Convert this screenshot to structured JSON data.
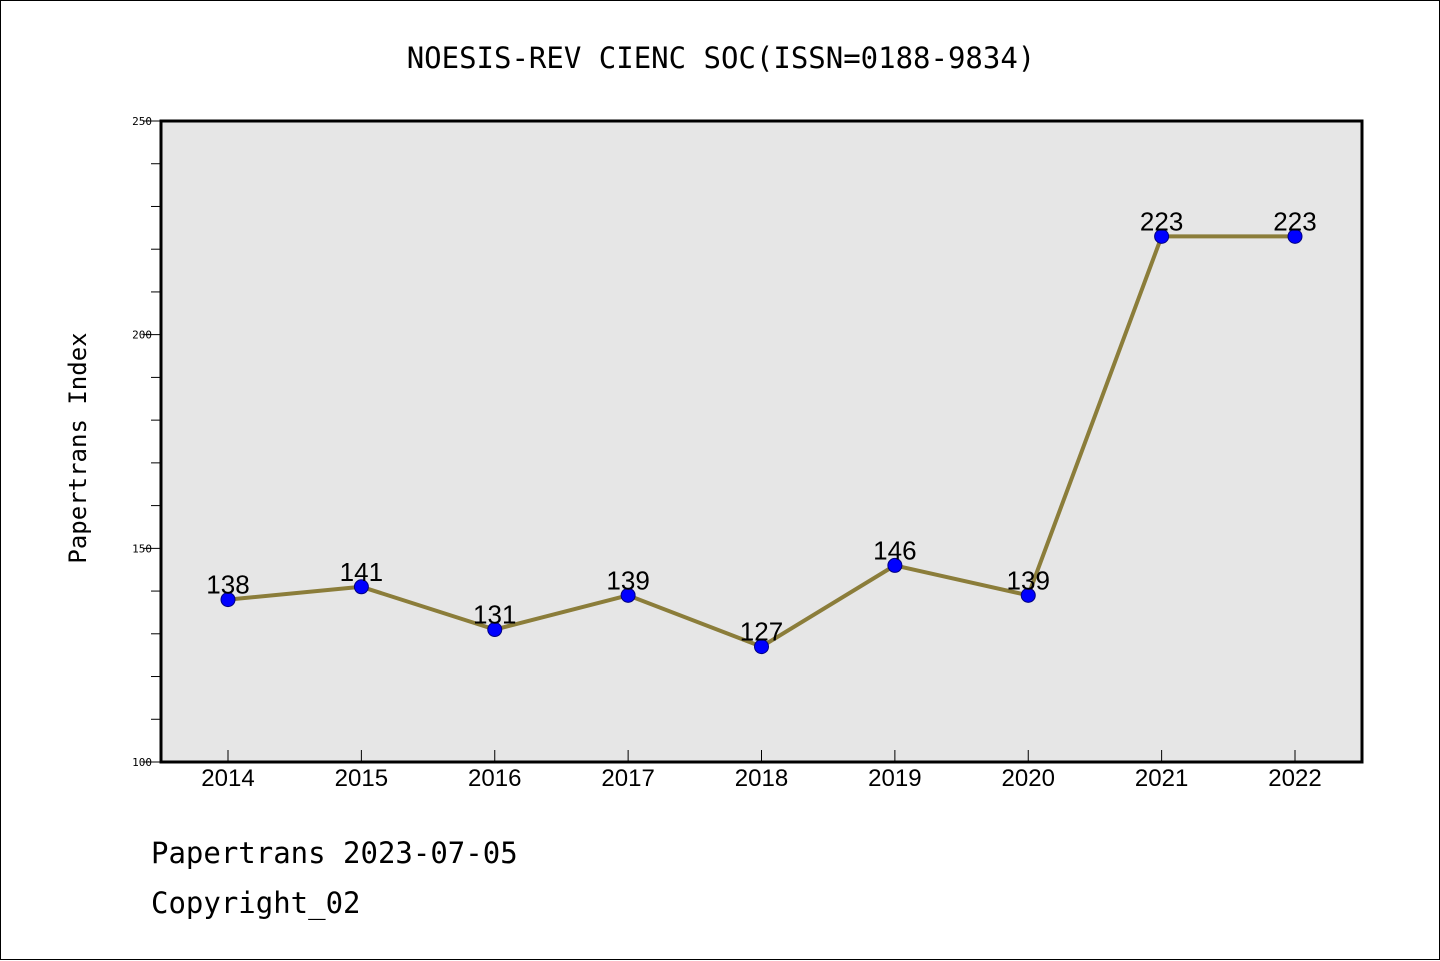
{
  "chart_data": {
    "type": "line",
    "title": "NOESIS-REV CIENC SOC(ISSN=0188-9834)",
    "xlabel": "",
    "ylabel": "Papertrans Index",
    "categories": [
      "2014",
      "2015",
      "2016",
      "2017",
      "2018",
      "2019",
      "2020",
      "2021",
      "2022"
    ],
    "values": [
      138,
      141,
      131,
      139,
      127,
      146,
      139,
      223,
      223
    ],
    "ylim": [
      100,
      250
    ],
    "yticks": [
      "100",
      "150",
      "200",
      "250"
    ],
    "grid": false,
    "legend": "none",
    "line_color": "#8b7d3a",
    "marker_color": "#0000ff",
    "plot_background": "#e6e6e6"
  },
  "footer": {
    "line1": "Papertrans 2023-07-05",
    "line2": "Copyright_02"
  }
}
